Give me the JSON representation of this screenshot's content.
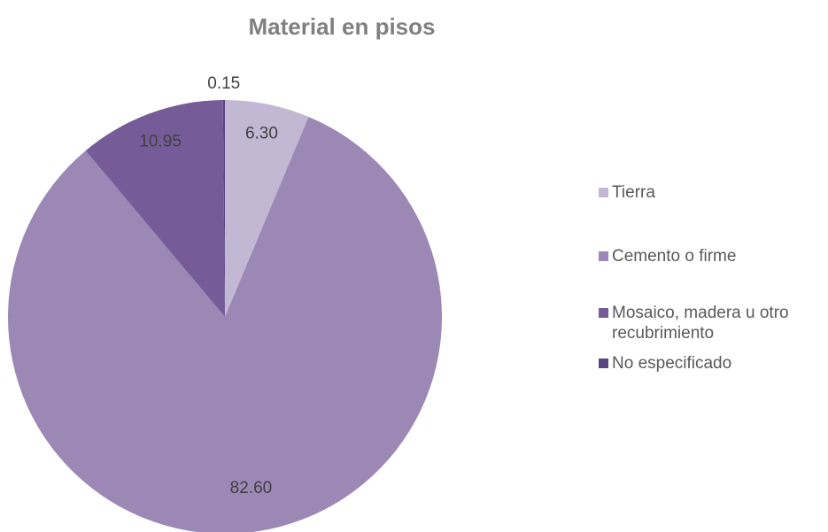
{
  "chart_data": {
    "type": "pie",
    "title": "Material en pisos",
    "categories": [
      "Tierra",
      "Cemento o firme",
      "Mosaico, madera u otro recubrimiento",
      "No especificado"
    ],
    "values": [
      6.3,
      82.6,
      10.95,
      0.15
    ],
    "value_labels": [
      "6.30",
      "82.60",
      "10.95",
      "0.15"
    ],
    "colors": [
      "#c3b8d4",
      "#9b88b5",
      "#755c99",
      "#5b4581"
    ],
    "legend": "right"
  }
}
